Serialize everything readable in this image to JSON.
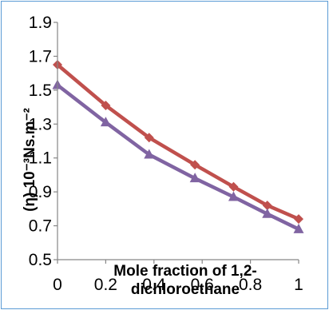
{
  "chart_data": {
    "type": "line",
    "xlabel": [
      "Mole fraction of 1,2-",
      "dichloroethane"
    ],
    "ylabel": "(η) 10⁻³Ns.m⁻²",
    "x": [
      0,
      0.2,
      0.4,
      0.6,
      0.8,
      1
    ],
    "x_tick_labels": [
      "0",
      "0.2",
      "0.4",
      "0.6",
      "0.8",
      "1"
    ],
    "y_tick_labels": [
      "0.5",
      "0.7",
      "0.9",
      "1.1",
      "1.3",
      "1.5",
      "1.7",
      "1.9"
    ],
    "xlim": [
      0,
      1
    ],
    "ylim": [
      0.5,
      1.9
    ],
    "grid": false,
    "legend": "none",
    "series": [
      {
        "color": "#c0504d",
        "marker": "diamond",
        "x": [
          0,
          0.2,
          0.38,
          0.57,
          0.73,
          0.87,
          1
        ],
        "values": [
          1.65,
          1.41,
          1.22,
          1.06,
          0.93,
          0.82,
          0.74
        ]
      },
      {
        "color": "#8064a2",
        "marker": "triangle",
        "x": [
          0,
          0.2,
          0.38,
          0.57,
          0.73,
          0.87,
          1
        ],
        "values": [
          1.53,
          1.31,
          1.12,
          0.98,
          0.87,
          0.77,
          0.68
        ]
      }
    ]
  }
}
